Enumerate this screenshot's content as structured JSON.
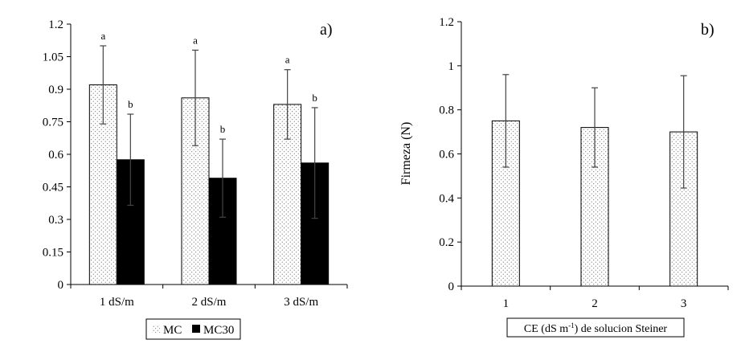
{
  "chart_data": [
    {
      "type": "bar",
      "panel_label": "a)",
      "categories": [
        "1 dS/m",
        "2 dS/m",
        "3 dS/m"
      ],
      "series": [
        {
          "name": "MC",
          "values": [
            0.92,
            0.86,
            0.83
          ],
          "errors": [
            0.18,
            0.22,
            0.16
          ],
          "letters": [
            "a",
            "a",
            "a"
          ],
          "pattern": "dots"
        },
        {
          "name": "MC30",
          "values": [
            0.575,
            0.49,
            0.56
          ],
          "errors": [
            0.21,
            0.18,
            0.255
          ],
          "letters": [
            "b",
            "b",
            "b"
          ],
          "pattern": "solid-black"
        }
      ],
      "yticks": [
        "0",
        "0.15",
        "0.3",
        "0.45",
        "0.6",
        "0.75",
        "0.9",
        "1.05",
        "1.2"
      ],
      "ylim": [
        0,
        1.2
      ],
      "xlabel": "",
      "ylabel": "",
      "grid": false,
      "legend_position": "bottom"
    },
    {
      "type": "bar",
      "panel_label": "b)",
      "categories": [
        "1",
        "2",
        "3"
      ],
      "series": [
        {
          "values": [
            0.75,
            0.72,
            0.7
          ],
          "errors": [
            0.21,
            0.18,
            0.255
          ],
          "pattern": "dots"
        }
      ],
      "yticks": [
        "0",
        "0.2",
        "0.4",
        "0.6",
        "0.8",
        "1",
        "1.2"
      ],
      "ylim": [
        0,
        1.2
      ],
      "xlabel_main": "CE (dS m",
      "xlabel_sup": "-1",
      "xlabel_tail": ") de solucion Steiner",
      "ylabel": "Firmeza (N)",
      "grid": false
    }
  ]
}
